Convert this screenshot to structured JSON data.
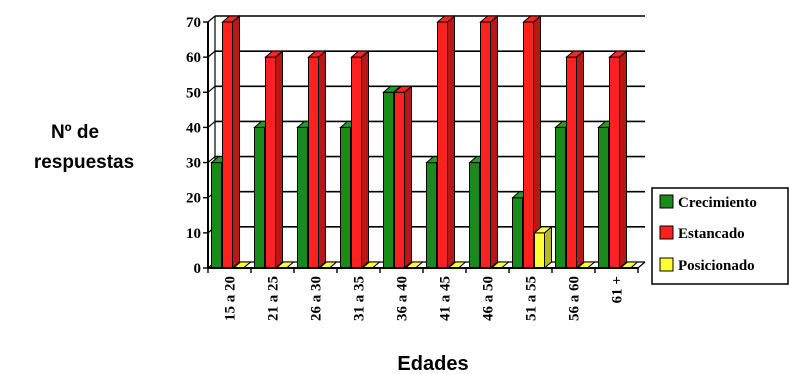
{
  "chart_data": {
    "type": "bar",
    "style": "3d-clustered-column",
    "ylabel_lines": [
      "Nº de",
      "respuestas"
    ],
    "xlabel": "Edades",
    "categories": [
      "15 a 20",
      "21 a 25",
      "26 a 30",
      "31 a 35",
      "36 a 40",
      "41 a 45",
      "46 a 50",
      "51 a 55",
      "56 a 60",
      "61 +"
    ],
    "series": [
      {
        "name": "Crecimiento",
        "color": "#1a8a1a",
        "values": [
          30,
          40,
          40,
          40,
          50,
          30,
          30,
          20,
          40,
          40
        ]
      },
      {
        "name": "Estancado",
        "color": "#ff2020",
        "values": [
          70,
          60,
          60,
          60,
          50,
          70,
          70,
          70,
          60,
          60
        ]
      },
      {
        "name": "Posicionado",
        "color": "#ffff33",
        "values": [
          0,
          0,
          0,
          0,
          0,
          0,
          0,
          10,
          0,
          0
        ]
      }
    ],
    "ylim": [
      0,
      70
    ],
    "yticks": [
      0,
      10,
      20,
      30,
      40,
      50,
      60,
      70
    ],
    "grid": true,
    "legend_position": "right"
  }
}
